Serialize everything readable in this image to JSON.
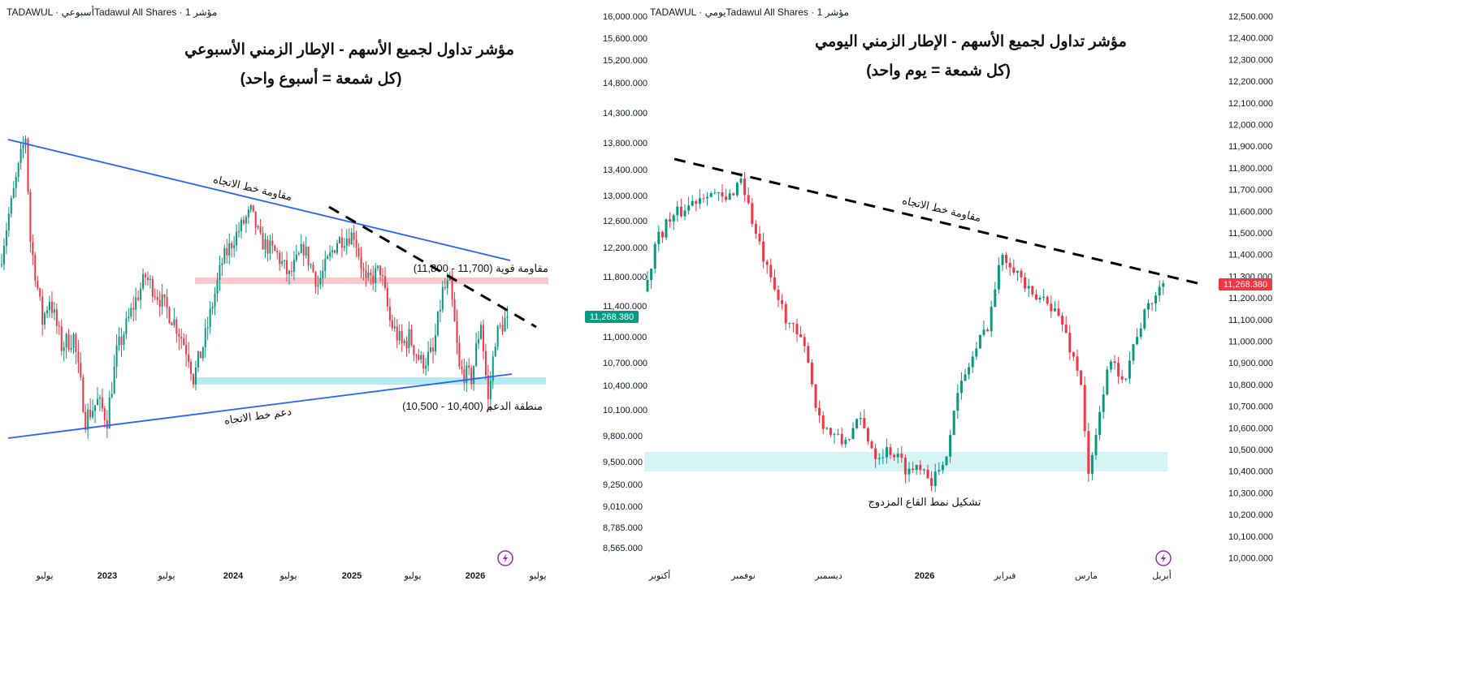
{
  "colors": {
    "up": "#089981",
    "down": "#f23645",
    "trendline": "#2962ff",
    "resistance_zone": "#f8c8cc",
    "support_zone": "#b2ebf2",
    "lightning": "#9c27b0"
  },
  "chart_data": [
    {
      "type": "candlestick",
      "header": "TADAWUL · أسبوعيTadawul All Shares · مؤشر 1",
      "title": "مؤشر تداول لجميع الأسهم - الإطار الزمني الأسبوعي",
      "subtitle": "(كل شمعة = أسبوع واحد)",
      "timeframe": "weekly",
      "y_ticks": [
        16000,
        15600,
        15200,
        14800,
        14300,
        13800,
        13400,
        13000,
        12600,
        12200,
        11800,
        11400,
        11000,
        10700,
        10400,
        10100,
        9800,
        9500,
        9250,
        9010,
        8785,
        8565
      ],
      "y_tick_labels": [
        "16,000.000",
        "15,600.000",
        "15,200.000",
        "14,800.000",
        "14,300.000",
        "13,800.000",
        "13,400.000",
        "13,000.000",
        "12,600.000",
        "12,200.000",
        "11,800.000",
        "11,400.000",
        "11,000.000",
        "10,700.000",
        "10,400.000",
        "10,100.000",
        "9,800.000",
        "9,500.000",
        "9,250.000",
        "9,010.000",
        "8,785.000",
        "8,565.000"
      ],
      "x_labels": [
        "يوليو",
        "2023",
        "يوليو",
        "2024",
        "يوليو",
        "2025",
        "يوليو",
        "2026",
        "يوليو"
      ],
      "last_price": "11,268.380",
      "close_keypoints": [
        [
          0,
          12100
        ],
        [
          3,
          12700
        ],
        [
          8,
          13600
        ],
        [
          10,
          13900
        ],
        [
          12,
          12300
        ],
        [
          17,
          11200
        ],
        [
          20,
          11500
        ],
        [
          25,
          10900
        ],
        [
          30,
          11000
        ],
        [
          35,
          10000
        ],
        [
          40,
          10200
        ],
        [
          44,
          10000
        ],
        [
          48,
          10800
        ],
        [
          55,
          11400
        ],
        [
          60,
          11800
        ],
        [
          66,
          11500
        ],
        [
          72,
          11200
        ],
        [
          78,
          10800
        ],
        [
          80,
          10500
        ],
        [
          85,
          11000
        ],
        [
          92,
          12000
        ],
        [
          98,
          12400
        ],
        [
          104,
          12750
        ],
        [
          108,
          12300
        ],
        [
          115,
          12100
        ],
        [
          120,
          11800
        ],
        [
          126,
          12200
        ],
        [
          132,
          11700
        ],
        [
          140,
          12300
        ],
        [
          147,
          12400
        ],
        [
          152,
          11700
        ],
        [
          158,
          11900
        ],
        [
          162,
          11200
        ],
        [
          167,
          10900
        ],
        [
          170,
          11000
        ],
        [
          175,
          10700
        ],
        [
          180,
          10800
        ],
        [
          184,
          11600
        ],
        [
          187,
          11700
        ],
        [
          191,
          10600
        ],
        [
          196,
          10500
        ],
        [
          200,
          11200
        ],
        [
          203,
          10200
        ],
        [
          206,
          11000
        ],
        [
          211,
          11268
        ]
      ],
      "annotations": {
        "trend_resistance": "مقاومة خط الاتجاه",
        "trend_support": "دعم خط الاتجاه",
        "strong_resistance": "مقاومة قوية (11,700 - 11,800)",
        "support_zone": "منطقة الدعم (10,400 - 10,500)"
      },
      "zones": {
        "resistance": [
          11700,
          11800
        ],
        "support": [
          10400,
          10500
        ]
      }
    },
    {
      "type": "candlestick",
      "header": "TADAWUL · يوميTadawul All Shares · مؤشر 1",
      "title": "مؤشر تداول لجميع الأسهم - الإطار الزمني اليومي",
      "subtitle": "(كل شمعة = يوم واحد)",
      "timeframe": "daily",
      "y_ticks": [
        12500,
        12400,
        12300,
        12200,
        12100,
        12000,
        11900,
        11800,
        11700,
        11600,
        11500,
        11400,
        11300,
        11200,
        11100,
        11000,
        10900,
        10800,
        10700,
        10600,
        10500,
        10400,
        10300,
        10200,
        10100,
        10000
      ],
      "y_tick_labels": [
        "12,500.000",
        "12,400.000",
        "12,300.000",
        "12,200.000",
        "12,100.000",
        "12,000.000",
        "11,900.000",
        "11,800.000",
        "11,700.000",
        "11,600.000",
        "11,500.000",
        "11,400.000",
        "11,300.000",
        "11,200.000",
        "11,100.000",
        "11,000.000",
        "10,900.000",
        "10,800.000",
        "10,700.000",
        "10,600.000",
        "10,500.000",
        "10,400.000",
        "10,300.000",
        "10,200.000",
        "10,100.000",
        "10,000.000"
      ],
      "x_labels": [
        "أكتوبر",
        "نوفمبر",
        "ديسمبر",
        "2026",
        "فبراير",
        "مارس",
        "أبريل"
      ],
      "last_price": "11,268.380",
      "close_keypoints": [
        [
          0,
          11264
        ],
        [
          2,
          11450
        ],
        [
          5,
          11545
        ],
        [
          9,
          11600
        ],
        [
          16,
          11700
        ],
        [
          21,
          11640
        ],
        [
          25,
          11760
        ],
        [
          29,
          11490
        ],
        [
          33,
          11265
        ],
        [
          38,
          11080
        ],
        [
          43,
          10930
        ],
        [
          45,
          10700
        ],
        [
          48,
          10590
        ],
        [
          52,
          10530
        ],
        [
          57,
          10630
        ],
        [
          61,
          10480
        ],
        [
          65,
          10500
        ],
        [
          70,
          10400
        ],
        [
          73,
          10440
        ],
        [
          76,
          10365
        ],
        [
          79,
          10400
        ],
        [
          82,
          10700
        ],
        [
          86,
          10890
        ],
        [
          91,
          11080
        ],
        [
          95,
          11410
        ],
        [
          98,
          11350
        ],
        [
          103,
          11190
        ],
        [
          107,
          11200
        ],
        [
          111,
          11080
        ],
        [
          116,
          10815
        ],
        [
          118,
          10365
        ],
        [
          120,
          10550
        ],
        [
          123,
          10890
        ],
        [
          128,
          10850
        ],
        [
          131,
          11040
        ],
        [
          135,
          11190
        ],
        [
          138,
          11268
        ]
      ],
      "annotations": {
        "trend_resistance": "مقاومة خط الاتجاه",
        "double_bottom": "تشكيل نمط القاع المزدوج"
      },
      "zones": {
        "support": [
          10400,
          10500
        ]
      }
    }
  ]
}
